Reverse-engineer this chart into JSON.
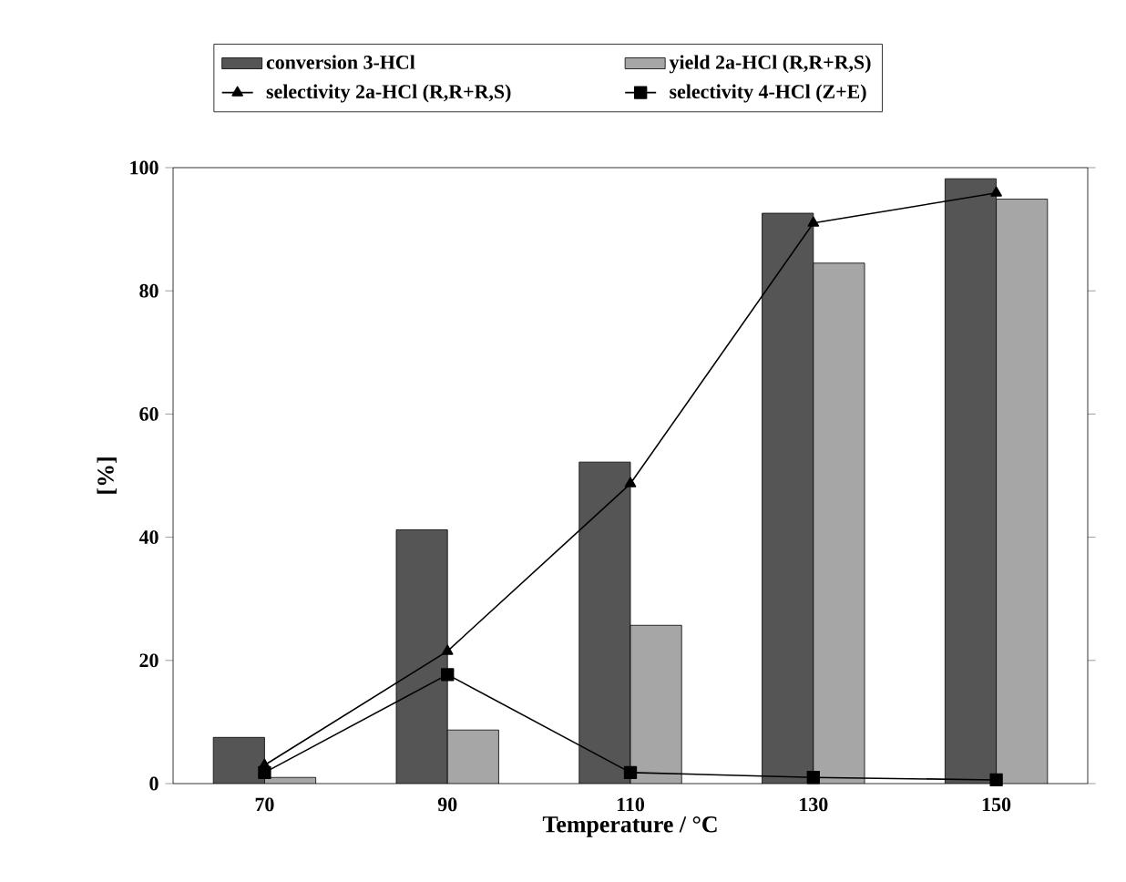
{
  "chart_data": {
    "type": "bar",
    "xlabel": "Temperature / °C",
    "ylabel": "[%]",
    "categories": [
      "70",
      "90",
      "110",
      "130",
      "150"
    ],
    "series": [
      {
        "name": "conversion 3-HCl",
        "type": "bar",
        "color": "#555555",
        "values": [
          7.5,
          41.2,
          52.2,
          92.6,
          98.2
        ]
      },
      {
        "name": "yield 2a-HCl (R,R+R,S)",
        "type": "bar",
        "color": "#a6a6a6",
        "values": [
          1.0,
          8.7,
          25.7,
          84.5,
          94.9
        ]
      },
      {
        "name": "selectivity 2a-HCl (R,R+R,S)",
        "type": "line",
        "color": "#000000",
        "marker": "triangle",
        "values": [
          3.0,
          21.5,
          48.7,
          91.0,
          95.9
        ]
      },
      {
        "name": "selectivity 4-HCl (Z+E)",
        "type": "line",
        "color": "#000000",
        "marker": "square",
        "values": [
          1.8,
          17.7,
          1.8,
          1.0,
          0.6
        ]
      }
    ],
    "ylim": [
      0,
      100
    ],
    "yticks": [
      0,
      20,
      40,
      60,
      80,
      100
    ],
    "grid": false,
    "legend": "top"
  }
}
